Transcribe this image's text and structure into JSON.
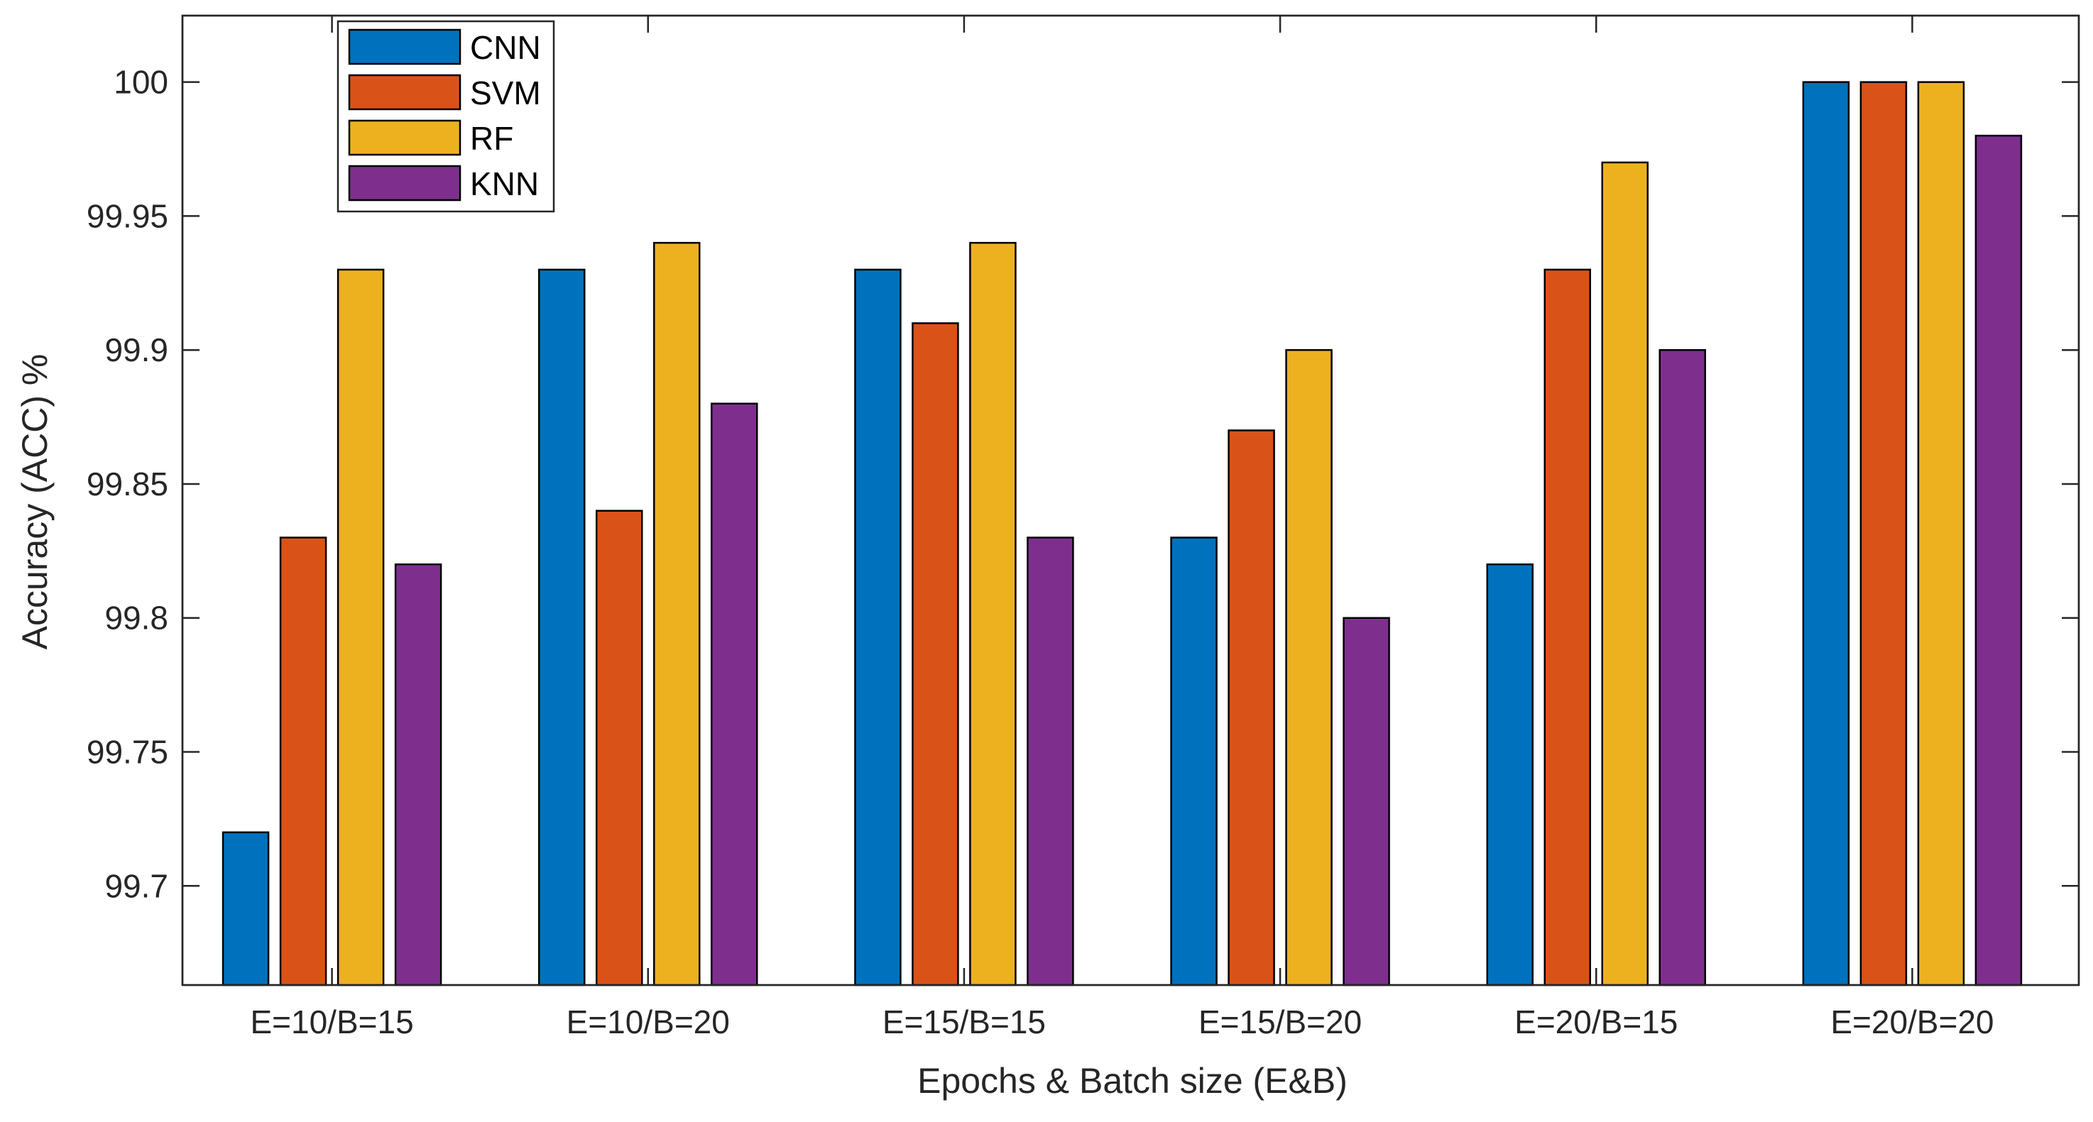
{
  "chart_data": {
    "type": "bar",
    "title": "",
    "xlabel": "Epochs & Batch size (E&B)",
    "ylabel": "Accuracy (ACC) %",
    "categories": [
      "E=10/B=15",
      "E=10/B=20",
      "E=15/B=15",
      "E=15/B=20",
      "E=20/B=15",
      "E=20/B=20"
    ],
    "series": [
      {
        "name": "CNN",
        "color": "#0072BD",
        "values": [
          99.72,
          99.93,
          99.93,
          99.83,
          99.82,
          100.0
        ]
      },
      {
        "name": "SVM",
        "color": "#D95319",
        "values": [
          99.83,
          99.84,
          99.91,
          99.87,
          99.93,
          100.0
        ]
      },
      {
        "name": "RF",
        "color": "#EDB120",
        "values": [
          99.93,
          99.94,
          99.94,
          99.9,
          99.97,
          100.0
        ]
      },
      {
        "name": "KNN",
        "color": "#7E2F8E",
        "values": [
          99.82,
          99.88,
          99.83,
          99.8,
          99.9,
          99.98
        ]
      }
    ],
    "yticks": [
      "99.7",
      "99.75",
      "99.8",
      "99.85",
      "99.9",
      "99.95",
      "100"
    ],
    "ylim": [
      99.663,
      100.0248
    ],
    "grid": false,
    "legend_position": "top-left"
  }
}
